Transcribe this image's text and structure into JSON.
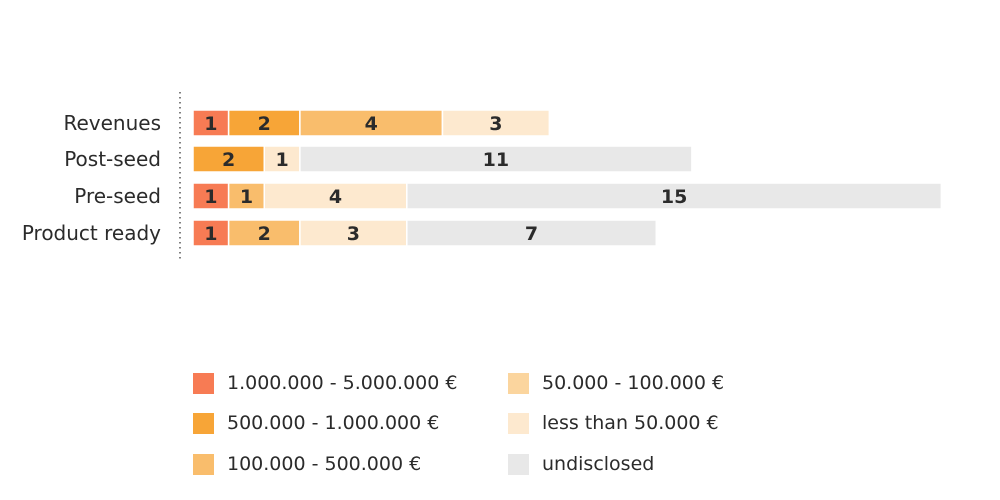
{
  "chart_data": {
    "type": "bar",
    "orientation": "horizontal",
    "stacked": true,
    "title": "",
    "xlabel": "",
    "ylabel": "",
    "categories": [
      "Revenues",
      "Post-seed",
      "Pre-seed",
      "Product ready"
    ],
    "series": [
      {
        "name": "1.000.000 - 5.000.000 €",
        "color": "#f77b54",
        "values": [
          1,
          0,
          1,
          1
        ]
      },
      {
        "name": "500.000 - 1.000.000 €",
        "color": "#f7a537",
        "values": [
          2,
          2,
          0,
          0
        ]
      },
      {
        "name": "100.000 - 500.000 €",
        "color": "#f9bd6c",
        "values": [
          4,
          0,
          1,
          2
        ]
      },
      {
        "name": "50.000 - 100.000 €",
        "color": "#fbd59e",
        "values": [
          0,
          0,
          0,
          0
        ]
      },
      {
        "name": "less than 50.000 €",
        "color": "#fde9cf",
        "values": [
          3,
          1,
          4,
          3
        ]
      },
      {
        "name": "undisclosed",
        "color": "#e8e8e8",
        "values": [
          0,
          11,
          15,
          7
        ]
      }
    ],
    "xlim": [
      0,
      22
    ],
    "grid": false,
    "legend": "bottom"
  }
}
